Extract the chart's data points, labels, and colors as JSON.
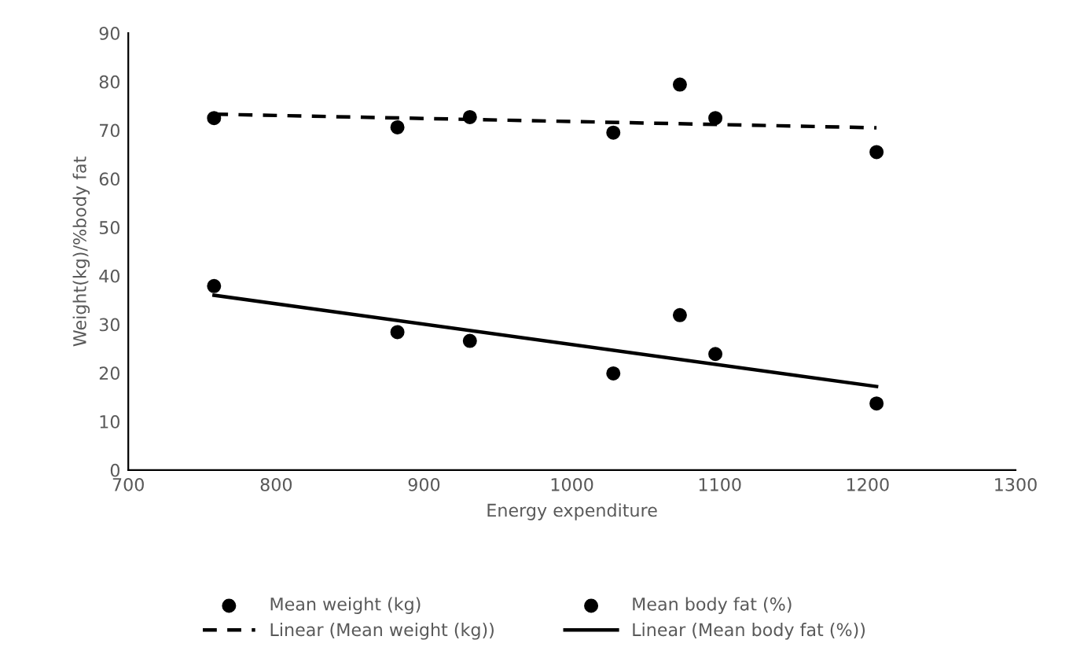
{
  "chart_data": {
    "type": "scatter",
    "xlabel": "Energy expenditure",
    "ylabel": "Weight(kg)/%body fat",
    "xlim": [
      700,
      1300
    ],
    "xticks": [
      700,
      800,
      900,
      1000,
      1100,
      1200,
      1300
    ],
    "ylim": [
      0,
      90
    ],
    "yticks": [
      0,
      10,
      20,
      30,
      40,
      50,
      60,
      70,
      80,
      90
    ],
    "grid": false,
    "legend": "bottom",
    "series": [
      {
        "name": "Mean weight (kg)",
        "marker": "circle",
        "color": "#000000",
        "x": [
          758,
          882,
          931,
          1028,
          1073,
          1097,
          1206
        ],
        "values": [
          72.5,
          70.6,
          72.7,
          69.5,
          79.4,
          72.5,
          65.5
        ]
      },
      {
        "name": "Mean body fat (%)",
        "marker": "circle",
        "color": "#000000",
        "x": [
          758,
          882,
          931,
          1028,
          1073,
          1097,
          1206
        ],
        "values": [
          37.9,
          28.4,
          26.6,
          19.9,
          31.9,
          23.9,
          13.7
        ]
      },
      {
        "name": "Linear (Mean weight (kg))",
        "type": "line",
        "line_style": "dashed",
        "marker": "none",
        "color": "#000000",
        "x": [
          758,
          1206
        ],
        "values": [
          73.3,
          70.5
        ]
      },
      {
        "name": "Linear (Mean body fat (%))",
        "type": "line",
        "line_style": "solid",
        "marker": "none",
        "color": "#000000",
        "x": [
          758,
          1206
        ],
        "values": [
          36.0,
          17.2
        ]
      }
    ]
  }
}
